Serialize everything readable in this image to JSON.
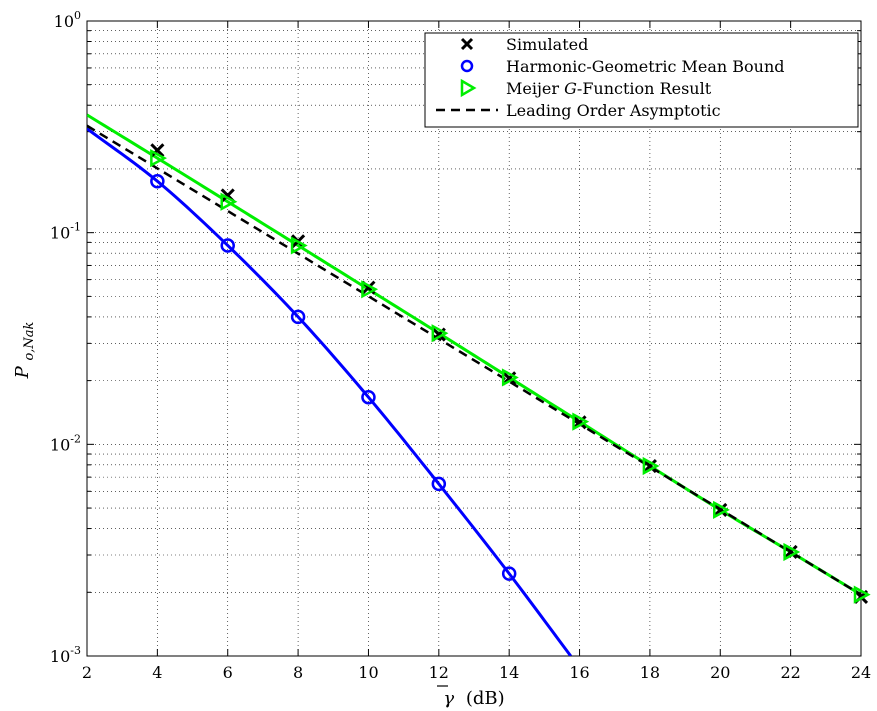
{
  "chart_data": {
    "type": "line",
    "xlabel_symbol": "γ",
    "xlabel_unit": "(dB)",
    "ylabel_main": "P",
    "ylabel_sub": "o,Nak",
    "xlim": [
      2,
      24
    ],
    "ylim": [
      0.001,
      1
    ],
    "yscale": "log",
    "grid": true,
    "legend_position": "top-right",
    "x_ticks": [
      2,
      4,
      6,
      8,
      10,
      12,
      14,
      16,
      18,
      20,
      22,
      24
    ],
    "x_tick_labels": [
      "2",
      "4",
      "6",
      "8",
      "10",
      "12",
      "14",
      "16",
      "18",
      "20",
      "22",
      "24"
    ],
    "y_ticks": [
      {
        "base": "10",
        "exp": "-3",
        "value": 0.001
      },
      {
        "base": "10",
        "exp": "-2",
        "value": 0.01
      },
      {
        "base": "10",
        "exp": "-1",
        "value": 0.1
      },
      {
        "base": "10",
        "exp": "0",
        "value": 1
      }
    ],
    "series": [
      {
        "name": "Simulated",
        "color": "#000000",
        "marker": "x",
        "line": "none",
        "x": [
          4,
          6,
          8,
          10,
          12,
          14,
          16,
          18,
          20,
          22,
          24
        ],
        "y": [
          0.245,
          0.15,
          0.091,
          0.055,
          0.033,
          0.0205,
          0.0127,
          0.0079,
          0.0049,
          0.0031,
          0.0019
        ]
      },
      {
        "name": "Harmonic-Geometric Mean Bound",
        "color": "#0000ff",
        "marker": "o",
        "line": "solid",
        "x": [
          2,
          4,
          6,
          8,
          10,
          12,
          14,
          15.75
        ],
        "y": [
          0.31,
          0.175,
          0.087,
          0.04,
          0.0167,
          0.0065,
          0.00245,
          0.001
        ],
        "marker_x": [
          4,
          6,
          8,
          10,
          12,
          14
        ],
        "marker_y": [
          0.175,
          0.087,
          0.04,
          0.0167,
          0.0065,
          0.00245
        ]
      },
      {
        "name_prefix": "Meijer ",
        "name_italic": "G",
        "name_suffix": "-Function Result",
        "color": "#00ee00",
        "marker": "triangle-right",
        "line": "solid",
        "x": [
          2,
          4,
          6,
          8,
          10,
          12,
          14,
          16,
          18,
          20,
          22,
          24
        ],
        "y": [
          0.36,
          0.225,
          0.14,
          0.087,
          0.054,
          0.0335,
          0.0207,
          0.0128,
          0.0079,
          0.0049,
          0.0031,
          0.00195
        ],
        "marker_x": [
          4,
          6,
          8,
          10,
          12,
          14,
          16,
          18,
          20,
          22,
          24
        ],
        "marker_y": [
          0.225,
          0.14,
          0.087,
          0.054,
          0.0335,
          0.0207,
          0.0128,
          0.0079,
          0.0049,
          0.0031,
          0.00195
        ]
      },
      {
        "name": "Leading Order Asymptotic",
        "color": "#000000",
        "marker": "none",
        "line": "dashed",
        "x": [
          2,
          24
        ],
        "y": [
          0.32,
          0.00195
        ]
      }
    ]
  }
}
